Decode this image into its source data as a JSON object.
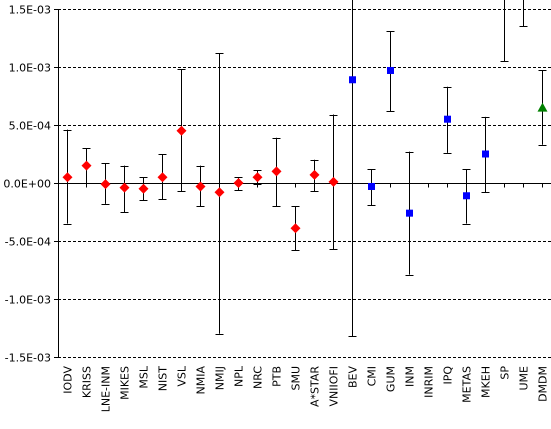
{
  "chart_data": {
    "type": "scatter",
    "title": "",
    "xlabel": "",
    "ylabel": "",
    "ylim": [
      -0.0015,
      0.0015
    ],
    "y_ticks": [
      {
        "value": 0.0015,
        "label": "1.5E-03"
      },
      {
        "value": 0.001,
        "label": "1.0E-03"
      },
      {
        "value": 0.0005,
        "label": "5.0E-04"
      },
      {
        "value": 0,
        "label": "0.0E+00"
      },
      {
        "value": -0.0005,
        "label": "-5.0E-04"
      },
      {
        "value": -0.001,
        "label": "-1.0E-03"
      },
      {
        "value": -0.0015,
        "label": "-1.5E-03"
      }
    ],
    "grid": "horizontal dashed",
    "categories": [
      "IODV",
      "KRISS",
      "LNE-INM",
      "MIKES",
      "MSL",
      "NIST",
      "VSL",
      "NMIA",
      "NMIJ",
      "NPL",
      "NRC",
      "PTB",
      "SMU",
      "A*STAR",
      "VNIIOFI",
      "BEV",
      "CMI",
      "GUM",
      "INM",
      "INRIM",
      "IPQ",
      "METAS",
      "MKEH",
      "SP",
      "UME",
      "DMDM"
    ],
    "series": [
      {
        "marker": "diamond",
        "color": "#ff0000",
        "points": [
          {
            "category": "IODV",
            "y": 5e-05,
            "low": -0.00035,
            "high": 0.00046
          },
          {
            "category": "KRISS",
            "y": 0.00015,
            "low": 0.0,
            "high": 0.0003
          },
          {
            "category": "LNE-INM",
            "y": -1e-05,
            "low": -0.00018,
            "high": 0.00017
          },
          {
            "category": "MIKES",
            "y": -4e-05,
            "low": -0.00025,
            "high": 0.00015
          },
          {
            "category": "MSL",
            "y": -5e-05,
            "low": -0.00015,
            "high": 5e-05
          },
          {
            "category": "NIST",
            "y": 5e-05,
            "low": -0.00014,
            "high": 0.00025
          },
          {
            "category": "VSL",
            "y": 0.00045,
            "low": -7e-05,
            "high": 0.00098
          },
          {
            "category": "NMIA",
            "y": -3e-05,
            "low": -0.0002,
            "high": 0.00015
          },
          {
            "category": "NMIJ",
            "y": -8e-05,
            "low": -0.0013,
            "high": 0.00112
          },
          {
            "category": "NPL",
            "y": 0.0,
            "low": -6e-05,
            "high": 5e-05
          },
          {
            "category": "NRC",
            "y": 5e-05,
            "low": -1e-05,
            "high": 0.00011
          },
          {
            "category": "PTB",
            "y": 0.0001,
            "low": -0.0002,
            "high": 0.00039
          },
          {
            "category": "SMU",
            "y": -0.00039,
            "low": -0.00058,
            "high": -0.0002
          },
          {
            "category": "A*STAR",
            "y": 7e-05,
            "low": -7e-05,
            "high": 0.0002
          },
          {
            "category": "VNIIOFI",
            "y": 1e-05,
            "low": -0.00057,
            "high": 0.00059
          }
        ]
      },
      {
        "marker": "square",
        "color": "#0000ff",
        "points": [
          {
            "category": "BEV",
            "y": 0.00089,
            "low": -0.00132,
            "high": 0.0017
          },
          {
            "category": "CMI",
            "y": -3e-05,
            "low": -0.00019,
            "high": 0.00012
          },
          {
            "category": "GUM",
            "y": 0.00097,
            "low": 0.00062,
            "high": 0.00131
          },
          {
            "category": "INM",
            "y": -0.00026,
            "low": -0.00079,
            "high": 0.00027
          },
          {
            "category": "IPQ",
            "y": 0.00055,
            "low": 0.00026,
            "high": 0.00083
          },
          {
            "category": "METAS",
            "y": -0.00011,
            "low": -0.00035,
            "high": 0.00012
          },
          {
            "category": "MKEH",
            "y": 0.00025,
            "low": -8e-05,
            "high": 0.00057
          },
          {
            "category": "SP",
            "y": null,
            "low": 0.00105,
            "high": 0.0017
          },
          {
            "category": "UME",
            "y": null,
            "low": 0.00135,
            "high": 0.0017
          }
        ]
      },
      {
        "marker": "triangle",
        "color": "#008000",
        "points": [
          {
            "category": "DMDM",
            "y": 0.00065,
            "low": 0.00033,
            "high": 0.00097
          }
        ]
      }
    ]
  }
}
